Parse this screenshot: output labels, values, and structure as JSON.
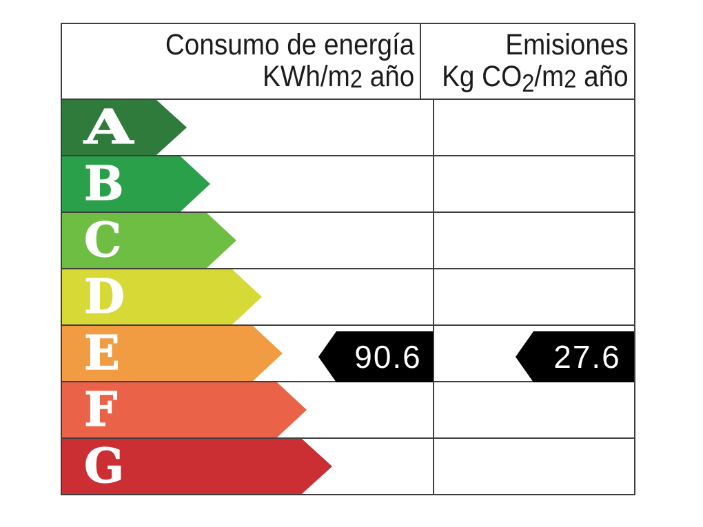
{
  "header": {
    "consumo_line1": "Consumo de energía",
    "consumo_unit_prefix": "KWh/m",
    "consumo_unit_exp": "2",
    "consumo_unit_suffix": " año",
    "emisiones_line1": "Emisiones",
    "emisiones_unit_prefix": "Kg CO",
    "emisiones_unit_sub": "2",
    "emisiones_unit_mid": "/m",
    "emisiones_unit_exp": "2",
    "emisiones_unit_suffix": " año"
  },
  "ratings": [
    {
      "letter": "A",
      "color": "#2e7b3c",
      "body": 137,
      "tip": 181,
      "wide": true
    },
    {
      "letter": "B",
      "color": "#2ba04a",
      "body": 172,
      "tip": 215,
      "wide": false
    },
    {
      "letter": "C",
      "color": "#6fbe44",
      "body": 210,
      "tip": 253,
      "wide": false
    },
    {
      "letter": "D",
      "color": "#d7d936",
      "body": 247,
      "tip": 290,
      "wide": false
    },
    {
      "letter": "E",
      "color": "#f19b42",
      "body": 277,
      "tip": 320,
      "wide": false
    },
    {
      "letter": "F",
      "color": "#ea6349",
      "body": 312,
      "tip": 355,
      "wide": false
    },
    {
      "letter": "G",
      "color": "#cc2f33",
      "body": 348,
      "tip": 392,
      "wide": false
    }
  ],
  "values": {
    "rating": "E",
    "consumo": "90.6",
    "emisiones": "27.6",
    "consumo_arrow_width": 166,
    "emisiones_arrow_width": 172,
    "arrow_color": "#000000",
    "text_color": "#ffffff"
  },
  "chart_data": {
    "type": "table",
    "title": "Energy efficiency rating scale",
    "columns": [
      "Consumo de energía KWh/m2 año",
      "Emisiones Kg CO2/m2 año"
    ],
    "scale": [
      "A",
      "B",
      "C",
      "D",
      "E",
      "F",
      "G"
    ],
    "rating": "E",
    "values": {
      "consumo_kwh_m2_ano": 90.6,
      "emisiones_kg_co2_m2_ano": 27.6
    }
  }
}
